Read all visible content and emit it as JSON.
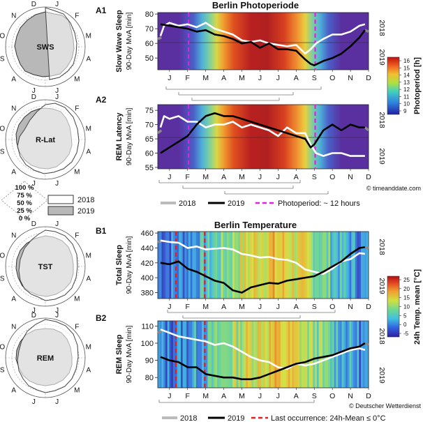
{
  "colors": {
    "line_2018": "#ffffff",
    "line_2019": "#000000",
    "gray_trace": "#8a8a8a",
    "photoperiod_line": "#e020e0",
    "last_occurrence_line": "#e02020",
    "polar_2019_fill": "#b8b8b8",
    "polar_2018_fill": "#ffffff"
  },
  "polar_months": [
    "J",
    "F",
    "M",
    "A",
    "M",
    "J",
    "J",
    "A",
    "S",
    "O",
    "N",
    "D"
  ],
  "polar_charts": [
    {
      "label": "SWS"
    },
    {
      "label": "R-Lat"
    },
    {
      "label": "TST"
    },
    {
      "label": "REM"
    }
  ],
  "polar_legend": {
    "ticks": [
      "100 %",
      "75 %",
      "50 %",
      "25 %",
      "0 %"
    ],
    "entries": [
      "2018",
      "2019"
    ]
  },
  "x_months": [
    "J",
    "F",
    "M",
    "A",
    "M",
    "J",
    "J",
    "A",
    "S",
    "O",
    "N",
    "D"
  ],
  "year_labels": {
    "top": "2018",
    "bottom": "2019"
  },
  "sections": {
    "photoperiod_title": "Berlin Photoperiode",
    "temperature_title": "Berlin Temperature"
  },
  "legends": {
    "photo": {
      "entry_2018": "2018",
      "entry_2019": "2019",
      "entry_marker": "Photoperiod: ~ 12 hours"
    },
    "temp": {
      "entry_2018": "2018",
      "entry_2019": "2019",
      "entry_marker": "Last occurrence: 24h-Mean ≤ 0°C"
    }
  },
  "colorbars": {
    "photoperiod": {
      "title": "Photoperiod [h]",
      "ticks": [
        "16",
        "15",
        "14",
        "13",
        "12",
        "11",
        "10",
        "9"
      ]
    },
    "temperature": {
      "title": "24h Temp. mean [°C]",
      "ticks": [
        "25",
        "20",
        "15",
        "10",
        "5",
        "0",
        "-5"
      ]
    }
  },
  "credits": {
    "photo": "© timeanddate.com",
    "temp": "© Deutscher Wetterdienst"
  },
  "chart_data": [
    {
      "panel": "A1",
      "type": "line",
      "title": "Berlin Photoperiode",
      "ylabel": "Slow Wave Sleep",
      "ylabel2": "90-Day MvA [min]",
      "yticks": [
        "80",
        "70",
        "60",
        "50"
      ],
      "ylim": [
        42,
        81
      ],
      "ref_y": 60.5,
      "months": [
        "J",
        "F",
        "M",
        "A",
        "M",
        "J",
        "J",
        "A",
        "S",
        "O",
        "N",
        "D"
      ],
      "marker_months": [
        2.55,
        9.55
      ],
      "background": "photoperiod",
      "series": [
        {
          "name": "2018",
          "x": [
            1,
            1.2,
            1.5,
            2,
            2.5,
            3,
            3.5,
            4,
            4.5,
            5,
            5.5,
            6,
            6.5,
            7,
            7.5,
            8,
            8.5,
            9,
            9.3,
            9.6,
            10,
            10.5,
            11,
            11.5,
            12,
            12.3
          ],
          "y": [
            65,
            72,
            74,
            72,
            73,
            71,
            74,
            70,
            68,
            66,
            62,
            61,
            62,
            60,
            59,
            58,
            59,
            53,
            56,
            60,
            63,
            66,
            66,
            68,
            72,
            73
          ]
        },
        {
          "name": "2019",
          "x": [
            1,
            1.5,
            2,
            2.5,
            3,
            3.5,
            4,
            4.5,
            5,
            5.5,
            6,
            6.5,
            7,
            7.5,
            8,
            8.5,
            9,
            9.3,
            9.5,
            10,
            10.5,
            11,
            11.5,
            12,
            12.3
          ],
          "y": [
            73,
            72,
            71,
            70,
            68,
            69,
            66,
            65,
            63,
            60,
            61,
            57,
            60,
            56,
            56,
            55,
            49,
            46,
            45,
            48,
            50,
            53,
            58,
            64,
            69
          ]
        }
      ]
    },
    {
      "panel": "A2",
      "type": "line",
      "ylabel": "REM Latency",
      "ylabel2": "90-Day MvA [min]",
      "yticks": [
        "75",
        "70",
        "65",
        "60",
        "55"
      ],
      "ylim": [
        54.5,
        77
      ],
      "ref_y": 65.5,
      "months": [
        "J",
        "F",
        "M",
        "A",
        "M",
        "J",
        "J",
        "A",
        "S",
        "O",
        "N",
        "D"
      ],
      "marker_months": [
        2.55,
        9.55
      ],
      "background": "photoperiod",
      "series": [
        {
          "name": "2018",
          "x": [
            1,
            1.2,
            1.5,
            2,
            2.5,
            3,
            3.5,
            4,
            4.5,
            5,
            5.5,
            6,
            6.5,
            7,
            7.5,
            8,
            8.5,
            9,
            9.3,
            9.6,
            10,
            10.5,
            11,
            11.5,
            12,
            12.3
          ],
          "y": [
            69,
            73,
            72,
            73,
            71,
            71,
            69,
            70,
            70,
            71,
            69,
            70,
            69,
            68,
            66,
            69,
            67,
            67,
            63,
            60,
            59,
            60,
            60,
            59,
            59,
            59
          ]
        },
        {
          "name": "2019",
          "x": [
            1,
            1.5,
            2,
            2.5,
            3,
            3.5,
            4,
            4.5,
            5,
            5.5,
            6,
            6.5,
            7,
            7.5,
            8,
            8.5,
            9,
            9.3,
            9.5,
            10,
            10.5,
            11,
            11.5,
            12,
            12.3
          ],
          "y": [
            60,
            62,
            64,
            66,
            70,
            73,
            74,
            73,
            73,
            72,
            71,
            70,
            69,
            68,
            67,
            66,
            65,
            62,
            63,
            68,
            70,
            68,
            70,
            69,
            69
          ]
        }
      ]
    },
    {
      "panel": "B1",
      "type": "line",
      "title": "Berlin Temperature",
      "ylabel": "Total Sleep",
      "ylabel2": "90-Day MvA [min]",
      "yticks": [
        "460",
        "440",
        "420",
        "400",
        "380"
      ],
      "ylim": [
        372,
        462
      ],
      "ref_y": null,
      "months": [
        "J",
        "F",
        "M",
        "A",
        "M",
        "J",
        "J",
        "A",
        "S",
        "O",
        "N",
        "D"
      ],
      "marker_months": [
        1.85,
        3.45
      ],
      "background": "temperature",
      "series": [
        {
          "name": "2018",
          "x": [
            1,
            1.5,
            2,
            2.5,
            3,
            3.5,
            4,
            4.5,
            5,
            5.5,
            6,
            6.5,
            7,
            7.5,
            8,
            8.5,
            9,
            9.5,
            10,
            10.5,
            11,
            11.5,
            12,
            12.3
          ],
          "y": [
            450,
            448,
            447,
            440,
            442,
            438,
            439,
            440,
            438,
            432,
            430,
            427,
            428,
            425,
            424,
            420,
            411,
            408,
            405,
            412,
            422,
            425,
            433,
            432
          ]
        },
        {
          "name": "2019",
          "x": [
            1,
            1.5,
            2,
            2.5,
            3,
            3.5,
            4,
            4.5,
            5,
            5.5,
            6,
            6.5,
            7,
            7.5,
            8,
            8.5,
            9,
            9.5,
            10,
            10.5,
            11,
            11.5,
            12,
            12.3
          ],
          "y": [
            420,
            418,
            422,
            412,
            408,
            402,
            396,
            393,
            383,
            380,
            387,
            390,
            393,
            392,
            396,
            398,
            400,
            402,
            408,
            415,
            422,
            432,
            440,
            441
          ]
        }
      ]
    },
    {
      "panel": "B2",
      "type": "line",
      "ylabel": "REM Sleep",
      "ylabel2": "90-Day MvA [min]",
      "yticks": [
        "110",
        "100",
        "90",
        "80"
      ],
      "ylim": [
        74,
        113
      ],
      "ref_y": null,
      "months": [
        "J",
        "F",
        "M",
        "A",
        "M",
        "J",
        "J",
        "A",
        "S",
        "O",
        "N",
        "D"
      ],
      "marker_months": [
        1.85,
        3.45
      ],
      "background": "temperature",
      "series": [
        {
          "name": "2018",
          "x": [
            1,
            1.5,
            2,
            2.5,
            3,
            3.5,
            4,
            4.5,
            5,
            5.5,
            6,
            6.5,
            7,
            7.5,
            8,
            8.5,
            9,
            9.5,
            10,
            10.5,
            11,
            11.5,
            12,
            12.3
          ],
          "y": [
            108,
            106,
            104,
            103,
            102,
            101,
            99,
            100,
            98,
            95,
            92,
            90,
            89,
            86,
            85,
            88,
            87,
            88,
            90,
            92,
            94,
            96,
            97,
            96
          ]
        },
        {
          "name": "2019",
          "x": [
            1,
            1.5,
            2,
            2.5,
            3,
            3.5,
            4,
            4.5,
            5,
            5.5,
            6,
            6.5,
            7,
            7.5,
            8,
            8.5,
            9,
            9.5,
            10,
            10.5,
            11,
            11.5,
            12,
            12.3
          ],
          "y": [
            92,
            90,
            89,
            86,
            86,
            82,
            81,
            80,
            80,
            79,
            79,
            80,
            82,
            84,
            86,
            88,
            89,
            91,
            92,
            93,
            95,
            97,
            98,
            100
          ]
        }
      ]
    }
  ]
}
